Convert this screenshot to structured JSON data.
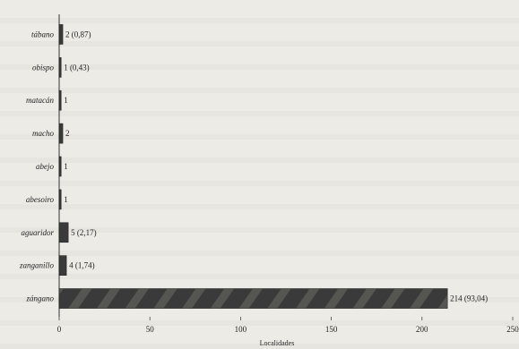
{
  "chart_data": {
    "type": "bar",
    "orientation": "horizontal",
    "categories": [
      "tábano",
      "obispo",
      "matacán",
      "macho",
      "abejo",
      "abesoiro",
      "aguaridor",
      "zanganillo",
      "zángano"
    ],
    "values": [
      2,
      1,
      1,
      2,
      1,
      1,
      5,
      4,
      214
    ],
    "value_labels": [
      "2 (0,87)",
      "1 (0,43)",
      "1",
      "2",
      "1",
      "1",
      "5 (2,17)",
      "4 (1,74)",
      "214 (93,04)"
    ],
    "xlabel": "Localidades",
    "ylabel": "",
    "xlim": [
      0,
      250
    ],
    "xticks": [
      0,
      50,
      100,
      150,
      200,
      250
    ],
    "grid": false,
    "bar_color": "#3a3a3a"
  }
}
